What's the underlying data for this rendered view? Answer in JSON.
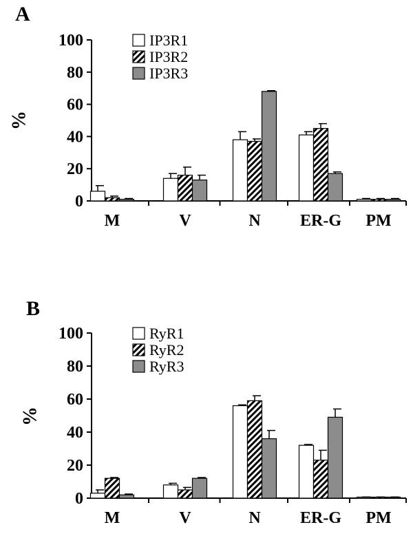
{
  "colors": {
    "series1": "#ffffff",
    "series3": "#8c8c8c",
    "stroke": "#000000",
    "hatch": "#000000"
  },
  "chart_data": [
    {
      "type": "bar",
      "panel": "A",
      "ylabel": "%",
      "ylim": [
        0,
        100
      ],
      "yticks": [
        "0",
        "20",
        "40",
        "60",
        "80",
        "100"
      ],
      "categories": [
        "M",
        "V",
        "N",
        "ER-G",
        "PM"
      ],
      "legend_position": "top-left",
      "series": [
        {
          "name": "IP3R1",
          "fill": "white",
          "values": [
            6,
            14,
            38,
            41,
            1
          ],
          "errors": [
            3.5,
            3,
            5,
            2,
            0.5
          ]
        },
        {
          "name": "IP3R2",
          "fill": "hatch",
          "values": [
            2,
            16,
            37,
            45,
            1
          ],
          "errors": [
            1,
            5,
            1.5,
            3,
            0.5
          ]
        },
        {
          "name": "IP3R3",
          "fill": "gray",
          "values": [
            1,
            13,
            68,
            17,
            1
          ],
          "errors": [
            0.5,
            3,
            0.5,
            1,
            0.5
          ]
        }
      ]
    },
    {
      "type": "bar",
      "panel": "B",
      "ylabel": "%",
      "ylim": [
        0,
        100
      ],
      "yticks": [
        "0",
        "20",
        "40",
        "60",
        "80",
        "100"
      ],
      "categories": [
        "M",
        "V",
        "N",
        "ER-G",
        "PM"
      ],
      "legend_position": "top-left",
      "series": [
        {
          "name": "RyR1",
          "fill": "white",
          "values": [
            3,
            8,
            56,
            32,
            0.5
          ],
          "errors": [
            2,
            1,
            0.5,
            0.5,
            0.2
          ]
        },
        {
          "name": "RyR2",
          "fill": "hatch",
          "values": [
            12,
            5,
            59,
            23,
            0.5
          ],
          "errors": [
            0.5,
            1.5,
            3,
            6,
            0.2
          ]
        },
        {
          "name": "RyR3",
          "fill": "gray",
          "values": [
            2,
            12,
            36,
            49,
            0.5
          ],
          "errors": [
            0.5,
            0.5,
            5,
            5,
            0.2
          ]
        }
      ]
    }
  ]
}
